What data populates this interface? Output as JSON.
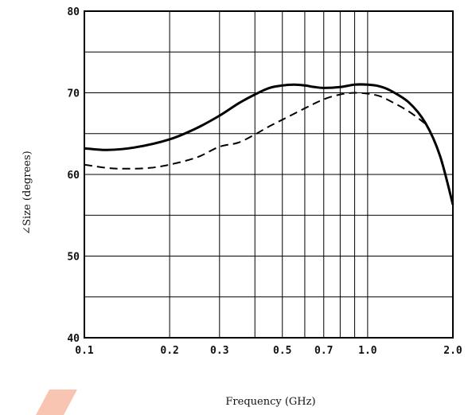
{
  "chart_data": {
    "type": "line",
    "xscale": "log",
    "xlabel": "Frequency (GHz)",
    "ylabel": "∠Size (degrees)",
    "xlim": [
      0.1,
      2.0
    ],
    "ylim": [
      40,
      80
    ],
    "grid": true,
    "x_ticks": [
      {
        "value": 0.1,
        "label": "0.1"
      },
      {
        "value": 0.2,
        "label": "0.2"
      },
      {
        "value": 0.3,
        "label": "0.3"
      },
      {
        "value": 0.5,
        "label": "0.5"
      },
      {
        "value": 0.7,
        "label": "0.7"
      },
      {
        "value": 1.0,
        "label": "1.0"
      },
      {
        "value": 2.0,
        "label": "2.0"
      }
    ],
    "x_minor_gridlines": [
      0.4,
      0.6,
      0.8,
      0.9
    ],
    "y_ticks": [
      {
        "value": 40,
        "label": "40"
      },
      {
        "value": 50,
        "label": "50"
      },
      {
        "value": 60,
        "label": "60"
      },
      {
        "value": 70,
        "label": "70"
      },
      {
        "value": 80,
        "label": "80"
      }
    ],
    "y_minor_gridlines": [
      45,
      55,
      65,
      75
    ],
    "series": [
      {
        "style": "solid",
        "color": "#000000",
        "x": [
          0.1,
          0.12,
          0.15,
          0.2,
          0.25,
          0.3,
          0.35,
          0.4,
          0.45,
          0.5,
          0.55,
          0.6,
          0.65,
          0.7,
          0.8,
          0.9,
          1.0,
          1.1,
          1.2,
          1.4,
          1.6,
          1.8,
          2.0
        ],
        "y": [
          63.2,
          63.0,
          63.3,
          64.3,
          65.7,
          67.2,
          68.7,
          69.8,
          70.6,
          70.9,
          71.0,
          70.9,
          70.7,
          70.6,
          70.7,
          71.0,
          71.0,
          70.8,
          70.3,
          68.8,
          66.3,
          62.3,
          56.3
        ]
      },
      {
        "style": "dashed",
        "color": "#000000",
        "x": [
          0.1,
          0.12,
          0.14,
          0.17,
          0.2,
          0.25,
          0.3,
          0.35,
          0.4,
          0.45,
          0.5,
          0.6,
          0.7,
          0.8,
          0.9,
          1.0,
          1.1,
          1.2,
          1.4,
          1.6
        ],
        "y": [
          61.2,
          60.8,
          60.7,
          60.8,
          61.2,
          62.1,
          63.4,
          63.9,
          64.9,
          65.9,
          66.7,
          68.1,
          69.2,
          69.8,
          70.0,
          69.9,
          69.6,
          69.0,
          67.7,
          66.2
        ]
      }
    ]
  },
  "theme": {
    "grid_color": "#000000",
    "frame_color": "#000000",
    "decor_color": "#f8c5b3"
  }
}
